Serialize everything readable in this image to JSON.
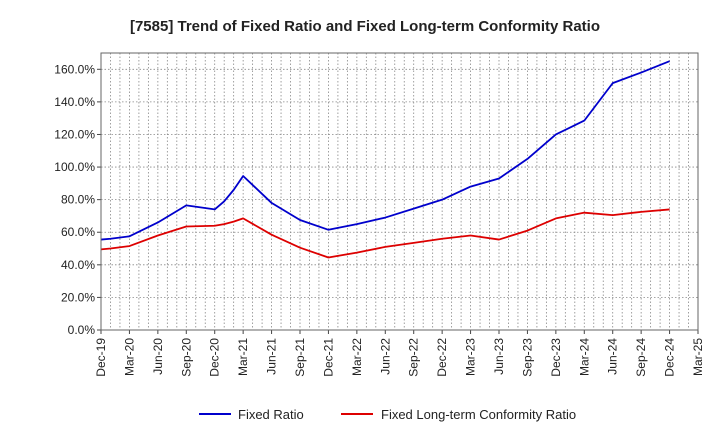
{
  "chart_data": {
    "type": "line",
    "title": "[7585]  Trend of Fixed Ratio and Fixed Long-term Conformity Ratio",
    "xlabel": "",
    "ylabel": "",
    "x_ticks": [
      "Dec-19",
      "Mar-20",
      "Jun-20",
      "Sep-20",
      "Dec-20",
      "Mar-21",
      "Jun-21",
      "Sep-21",
      "Dec-21",
      "Mar-22",
      "Jun-22",
      "Sep-22",
      "Dec-22",
      "Mar-23",
      "Jun-23",
      "Sep-23",
      "Dec-23",
      "Mar-24",
      "Jun-24",
      "Sep-24",
      "Dec-24",
      "Mar-25"
    ],
    "y_ticks": [
      "0.0%",
      "20.0%",
      "40.0%",
      "60.0%",
      "80.0%",
      "100.0%",
      "120.0%",
      "140.0%",
      "160.0%"
    ],
    "ylim": [
      0,
      170
    ],
    "grid": true,
    "legend_position": "bottom",
    "x": [
      "Dec-19",
      "Jan-20",
      "Mar-20",
      "Jun-20",
      "Sep-20",
      "Dec-20",
      "Jan-21",
      "Feb-21",
      "Mar-21",
      "Jun-21",
      "Sep-21",
      "Dec-21",
      "Mar-22",
      "Jun-22",
      "Sep-22",
      "Dec-22",
      "Mar-23",
      "Jun-23",
      "Sep-23",
      "Dec-23",
      "Mar-24",
      "Jun-24",
      "Sep-24",
      "Dec-24"
    ],
    "series": [
      {
        "name": "Fixed Ratio",
        "color": "#0000cc",
        "values": [
          55.5,
          56.0,
          57.5,
          66.0,
          76.5,
          74.0,
          79.0,
          86.0,
          94.5,
          78.0,
          67.5,
          61.5,
          65.0,
          69.0,
          74.5,
          80.0,
          88.0,
          93.0,
          105.0,
          120.0,
          128.5,
          151.5,
          158.0,
          165.0
        ]
      },
      {
        "name": "Fixed Long-term Conformity Ratio",
        "color": "#dd0000",
        "values": [
          49.5,
          50.0,
          51.5,
          58.0,
          63.5,
          64.0,
          65.0,
          66.5,
          68.5,
          58.5,
          50.5,
          44.5,
          47.5,
          51.0,
          53.5,
          56.0,
          58.0,
          55.5,
          61.0,
          68.5,
          72.0,
          70.5,
          72.5,
          74.0
        ]
      }
    ]
  }
}
